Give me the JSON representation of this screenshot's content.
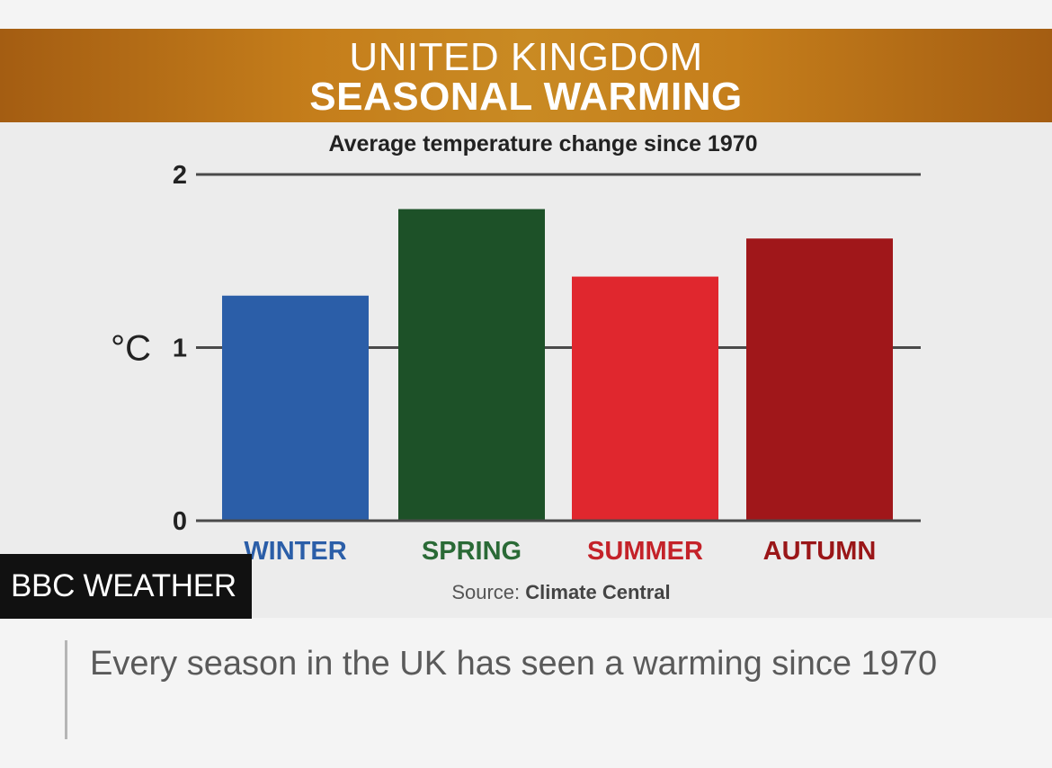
{
  "banner": {
    "line1": "UNITED KINGDOM",
    "line2": "SEASONAL WARMING"
  },
  "chart_data": {
    "type": "bar",
    "subtitle": "Average temperature change since 1970",
    "ylabel": "°C",
    "ylim": [
      0,
      2
    ],
    "yticks": [
      "0",
      "1",
      "2"
    ],
    "categories": [
      "WINTER",
      "SPRING",
      "SUMMER",
      "AUTUMN"
    ],
    "values": [
      1.3,
      1.8,
      1.41,
      1.63
    ],
    "colors": [
      "#2b5ea8",
      "#1d5128",
      "#e0272e",
      "#a0171a"
    ],
    "label_colors": [
      "#2b5ea8",
      "#2a6a36",
      "#c42229",
      "#9a1618"
    ],
    "source_label": "Source:",
    "source_name": "Climate Central",
    "grid": true
  },
  "badge": "BBC WEATHER",
  "caption": "Every season in the UK has seen a warming since 1970"
}
